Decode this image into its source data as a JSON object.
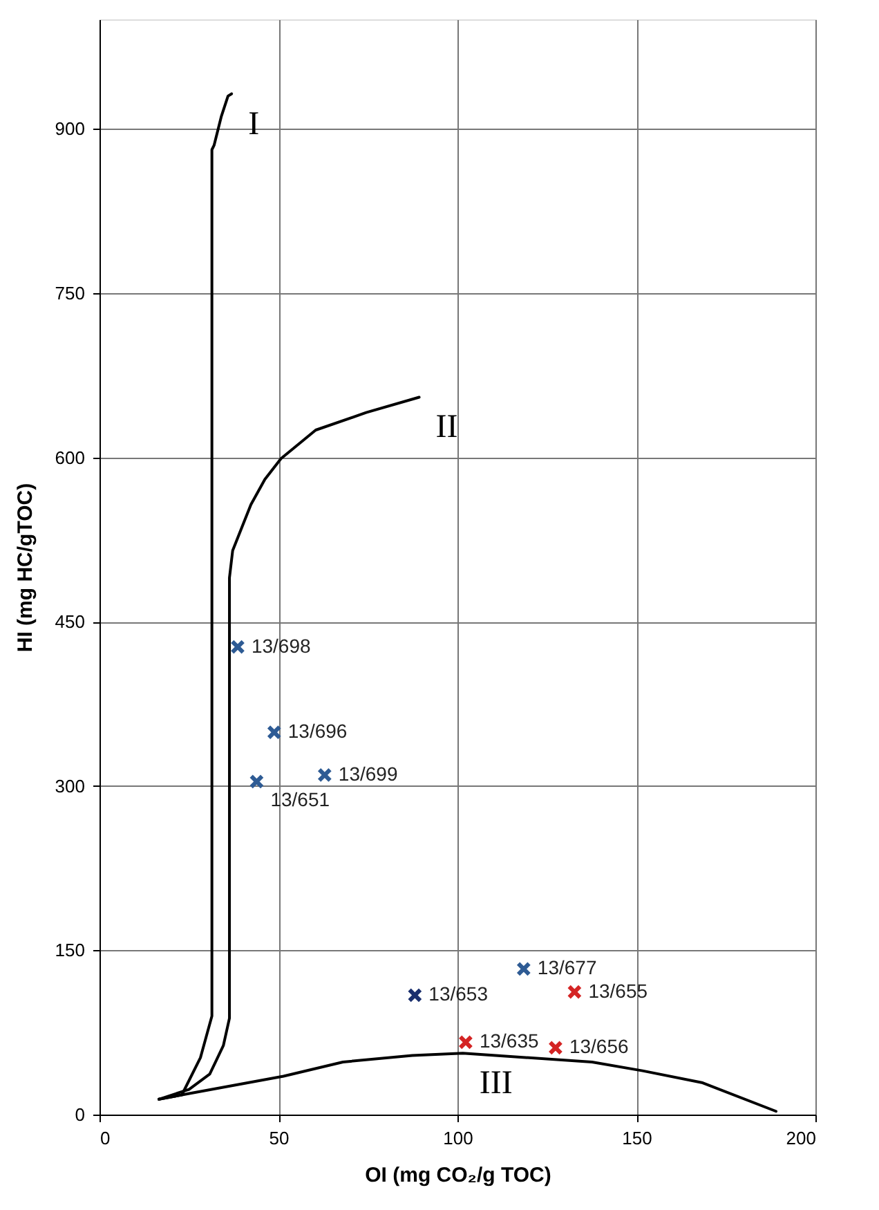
{
  "chart_data": {
    "type": "scatter",
    "xlabel": "OI (mg CO₂/g TOC)",
    "ylabel": "HI (mg HC/gTOC)",
    "xlim": [
      0,
      200
    ],
    "xticks": [
      0,
      50,
      100,
      150,
      200
    ],
    "ylim": [
      0,
      1000
    ],
    "yticks": [
      0,
      150,
      300,
      450,
      600,
      750,
      900
    ],
    "grid": true,
    "marker": "cross",
    "series": [
      {
        "name": "I",
        "type": "line",
        "marker": "none",
        "line_style": "solid",
        "color": "#000000",
        "x": [
          16.6,
          23,
          28.2,
          31.4,
          31.4,
          32,
          34,
          35.9,
          36.9
        ],
        "values": [
          14,
          18,
          52,
          90,
          881,
          885,
          911,
          930,
          932
        ]
      },
      {
        "name": "II",
        "type": "line",
        "marker": "none",
        "line_style": "solid",
        "color": "#000000",
        "x": [
          16.6,
          25,
          30.8,
          34.6,
          36.3,
          36.3,
          37.2,
          42.3,
          46.2,
          50.7,
          60.4,
          74.5,
          89.3
        ],
        "values": [
          14,
          23,
          37,
          63,
          88,
          490,
          515,
          557,
          580,
          599,
          625,
          641,
          655
        ]
      },
      {
        "name": "III",
        "type": "line",
        "marker": "none",
        "line_style": "solid",
        "color": "#000000",
        "x": [
          16.6,
          23,
          51.4,
          68,
          87.4,
          101.5,
          137.6,
          151.7,
          168.5,
          189
        ],
        "values": [
          14,
          18,
          35,
          48,
          54,
          56,
          48,
          40,
          29,
          3
        ]
      },
      {
        "x": [
          38.6,
          48.8,
          43.9,
          62.9,
          88.1,
          118.5,
          132.7,
          102.3,
          127.4
        ],
        "values": [
          427,
          349,
          304,
          310,
          109,
          133,
          112,
          66,
          61
        ],
        "colors": [
          "#2e5b94",
          "#2e5b94",
          "#2e5b94",
          "#2e5b94",
          "#1a2f6e",
          "#2e5b94",
          "#d42424",
          "#d42424",
          "#d42424"
        ]
      }
    ],
    "annotations": [
      {
        "text": "13/698",
        "x": 38.6,
        "y": 427
      },
      {
        "text": "13/696",
        "x": 48.8,
        "y": 349
      },
      {
        "text": "13/651",
        "x": 43.9,
        "y": 304
      },
      {
        "text": "13/699",
        "x": 62.9,
        "y": 310
      },
      {
        "text": "13/653",
        "x": 88.1,
        "y": 109
      },
      {
        "text": "13/677",
        "x": 118.5,
        "y": 133
      },
      {
        "text": "13/655",
        "x": 132.7,
        "y": 112
      },
      {
        "text": "13/635",
        "x": 102.3,
        "y": 66
      },
      {
        "text": "13/656",
        "x": 127.4,
        "y": 61
      }
    ]
  }
}
